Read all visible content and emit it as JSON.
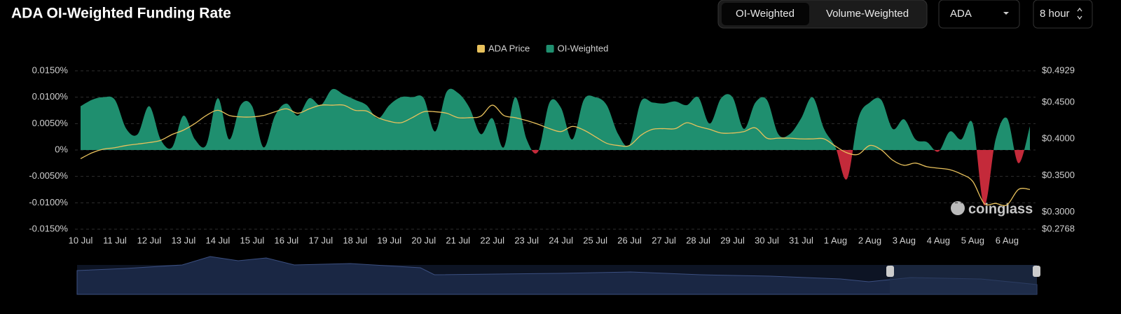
{
  "chart_data": {
    "type": "area",
    "title": "ADA OI-Weighted Funding Rate",
    "categories": [
      "10 Jul",
      null,
      null,
      "11 Jul",
      null,
      null,
      "12 Jul",
      null,
      null,
      "13 Jul",
      null,
      null,
      "14 Jul",
      null,
      null,
      "15 Jul",
      null,
      null,
      "16 Jul",
      null,
      null,
      "17 Jul",
      null,
      null,
      "18 Jul",
      null,
      null,
      "19 Jul",
      null,
      null,
      "20 Jul",
      null,
      null,
      "21 Jul",
      null,
      null,
      "22 Jul",
      null,
      null,
      "23 Jul",
      null,
      null,
      "24 Jul",
      null,
      null,
      "25 Jul",
      null,
      null,
      "26 Jul",
      null,
      null,
      "27 Jul",
      null,
      null,
      "28 Jul",
      null,
      null,
      "29 Jul",
      null,
      null,
      "30 Jul",
      null,
      null,
      "31 Jul",
      null,
      null,
      "1 Aug",
      null,
      null,
      "2 Aug",
      null,
      null,
      "3 Aug",
      null,
      null,
      "4 Aug",
      null,
      null,
      "5 Aug",
      null,
      null,
      "6 Aug",
      null,
      null
    ],
    "series": [
      {
        "name": "ADA Price",
        "type": "line",
        "axis": "y2",
        "color": "#e8c15c",
        "values": [
          0.373,
          0.381,
          0.386,
          0.388,
          0.391,
          0.393,
          0.395,
          0.398,
          0.406,
          0.412,
          0.421,
          0.432,
          0.439,
          0.432,
          0.43,
          0.43,
          0.432,
          0.437,
          0.441,
          0.435,
          0.441,
          0.446,
          0.446,
          0.446,
          0.439,
          0.438,
          0.429,
          0.424,
          0.422,
          0.429,
          0.437,
          0.437,
          0.435,
          0.429,
          0.429,
          0.431,
          0.446,
          0.432,
          0.429,
          0.425,
          0.42,
          0.414,
          0.41,
          0.417,
          0.412,
          0.403,
          0.394,
          0.391,
          0.391,
          0.405,
          0.413,
          0.414,
          0.414,
          0.422,
          0.417,
          0.413,
          0.408,
          0.408,
          0.41,
          0.415,
          0.401,
          0.401,
          0.401,
          0.4,
          0.4,
          0.4,
          0.39,
          0.381,
          0.379,
          0.391,
          0.385,
          0.371,
          0.364,
          0.367,
          0.362,
          0.36,
          0.358,
          0.352,
          0.342,
          0.312,
          0.312,
          0.31,
          0.331,
          0.331
        ]
      },
      {
        "name": "OI-Weighted",
        "type": "area",
        "color": "#1f8f6f",
        "negative_color": "#c42a3a",
        "values": [
          0.0083,
          0.0095,
          0.01,
          0.0095,
          0.004,
          0.003,
          0.0083,
          0.002,
          0.0005,
          0.0065,
          0.002,
          0.001,
          0.0098,
          0.002,
          0.0085,
          0.0083,
          0.0005,
          0.0065,
          0.0088,
          0.0065,
          0.0098,
          0.0085,
          0.0115,
          0.0105,
          0.0095,
          0.0085,
          0.006,
          0.0085,
          0.01,
          0.01,
          0.0098,
          0.0035,
          0.011,
          0.0108,
          0.008,
          0.003,
          0.006,
          0.0005,
          0.01,
          0.002,
          -0.0003,
          0.009,
          0.008,
          0.002,
          0.0095,
          0.01,
          0.0085,
          0.003,
          0.001,
          0.0092,
          0.009,
          0.0088,
          0.0092,
          0.0085,
          0.01,
          0.005,
          0.0098,
          0.01,
          0.004,
          0.009,
          0.0095,
          0.003,
          0.003,
          0.006,
          0.01,
          0.004,
          0.0005,
          -0.0055,
          0.006,
          0.009,
          0.0095,
          0.004,
          0.0058,
          0.002,
          0.0015,
          -0.0003,
          0.0035,
          0.002,
          0.005,
          -0.0105,
          0.002,
          0.006,
          -0.0025,
          0.0045
        ]
      }
    ],
    "ylim": [
      -0.015,
      0.015
    ],
    "yticks": [
      {
        "value": 0.015,
        "label": "0.0150%"
      },
      {
        "value": 0.01,
        "label": "0.0100%"
      },
      {
        "value": 0.005,
        "label": "0.0050%"
      },
      {
        "value": 0,
        "label": "0%"
      },
      {
        "value": -0.005,
        "label": "-0.0050%"
      },
      {
        "value": -0.01,
        "label": "-0.0100%"
      },
      {
        "value": -0.015,
        "label": "-0.0150%"
      }
    ],
    "y2lim": [
      0.2768,
      0.4929
    ],
    "y2ticks": [
      {
        "value": 0.4929,
        "label": "$0.4929"
      },
      {
        "value": 0.45,
        "label": "$0.4500"
      },
      {
        "value": 0.4,
        "label": "$0.4000"
      },
      {
        "value": 0.35,
        "label": "$0.3500"
      },
      {
        "value": 0.3,
        "label": "$0.3000"
      },
      {
        "value": 0.2768,
        "label": "$0.2768"
      }
    ],
    "grid": true,
    "legend": "top"
  },
  "controls": {
    "toggle": [
      "OI-Weighted",
      "Volume-Weighted"
    ],
    "symbol": "ADA",
    "interval": "8 hour"
  },
  "watermark": "coinglass"
}
